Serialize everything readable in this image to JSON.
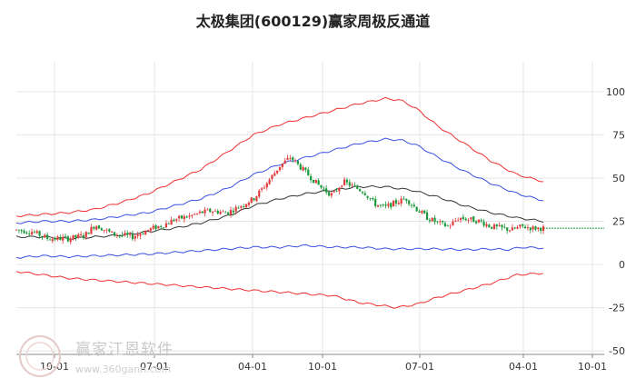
{
  "chart_data": {
    "type": "candlestick-with-bands",
    "title": "太极集团(600129)赢家周极反通道",
    "y_ticks": [
      100,
      75,
      50,
      25,
      0,
      -25,
      -50
    ],
    "ylim": [
      -52,
      112
    ],
    "x_ticks": [
      "10-01",
      "07-01",
      "04-01",
      "10-01",
      "07-01",
      "04-01",
      "10-01"
    ],
    "grid": true,
    "colors": {
      "up": "#e23b3b",
      "down": "#1b9a3b",
      "outer_band": "#f03030",
      "inner_band": "#3a4fe0",
      "middle": "#333333",
      "last_level": "#1b9a3b"
    },
    "series": [
      {
        "role": "outer_upper",
        "points": [
          [
            0,
            28
          ],
          [
            0.05,
            29
          ],
          [
            0.1,
            30
          ],
          [
            0.15,
            32
          ],
          [
            0.2,
            36
          ],
          [
            0.25,
            41
          ],
          [
            0.3,
            48
          ],
          [
            0.35,
            55
          ],
          [
            0.4,
            65
          ],
          [
            0.45,
            75
          ],
          [
            0.5,
            81
          ],
          [
            0.55,
            85
          ],
          [
            0.6,
            89
          ],
          [
            0.65,
            93
          ],
          [
            0.7,
            96
          ],
          [
            0.73,
            95
          ],
          [
            0.76,
            90
          ],
          [
            0.8,
            80
          ],
          [
            0.85,
            70
          ],
          [
            0.9,
            60
          ],
          [
            0.95,
            52
          ],
          [
            1,
            48
          ]
        ]
      },
      {
        "role": "inner_upper",
        "points": [
          [
            0,
            24
          ],
          [
            0.05,
            25
          ],
          [
            0.1,
            25
          ],
          [
            0.15,
            26
          ],
          [
            0.2,
            28
          ],
          [
            0.25,
            30
          ],
          [
            0.3,
            34
          ],
          [
            0.35,
            38
          ],
          [
            0.4,
            44
          ],
          [
            0.45,
            52
          ],
          [
            0.5,
            58
          ],
          [
            0.55,
            62
          ],
          [
            0.6,
            66
          ],
          [
            0.65,
            70
          ],
          [
            0.7,
            72.5
          ],
          [
            0.73,
            72
          ],
          [
            0.76,
            69
          ],
          [
            0.8,
            62
          ],
          [
            0.85,
            54
          ],
          [
            0.9,
            47
          ],
          [
            0.95,
            41
          ],
          [
            1,
            37
          ]
        ]
      },
      {
        "role": "middle",
        "points": [
          [
            0,
            16
          ],
          [
            0.05,
            16
          ],
          [
            0.1,
            15
          ],
          [
            0.15,
            16
          ],
          [
            0.2,
            17
          ],
          [
            0.25,
            19
          ],
          [
            0.3,
            21
          ],
          [
            0.35,
            24
          ],
          [
            0.4,
            28
          ],
          [
            0.45,
            34
          ],
          [
            0.5,
            38
          ],
          [
            0.55,
            41
          ],
          [
            0.6,
            43
          ],
          [
            0.65,
            45
          ],
          [
            0.7,
            45
          ],
          [
            0.75,
            43
          ],
          [
            0.8,
            39
          ],
          [
            0.85,
            34
          ],
          [
            0.9,
            30
          ],
          [
            0.95,
            27
          ],
          [
            1,
            25
          ]
        ]
      },
      {
        "role": "inner_lower",
        "points": [
          [
            0,
            4
          ],
          [
            0.05,
            5
          ],
          [
            0.1,
            4.5
          ],
          [
            0.15,
            5
          ],
          [
            0.2,
            5.5
          ],
          [
            0.25,
            6
          ],
          [
            0.3,
            7
          ],
          [
            0.35,
            8
          ],
          [
            0.4,
            9
          ],
          [
            0.45,
            10
          ],
          [
            0.5,
            10
          ],
          [
            0.55,
            11
          ],
          [
            0.6,
            10
          ],
          [
            0.65,
            10
          ],
          [
            0.7,
            9
          ],
          [
            0.75,
            9
          ],
          [
            0.8,
            9
          ],
          [
            0.85,
            8.5
          ],
          [
            0.9,
            9
          ],
          [
            0.93,
            8.5
          ],
          [
            0.96,
            10
          ],
          [
            1,
            9.5
          ]
        ]
      },
      {
        "role": "outer_lower",
        "points": [
          [
            0,
            -4
          ],
          [
            0.05,
            -6
          ],
          [
            0.1,
            -8
          ],
          [
            0.15,
            -9
          ],
          [
            0.2,
            -10
          ],
          [
            0.25,
            -11
          ],
          [
            0.3,
            -12
          ],
          [
            0.35,
            -13
          ],
          [
            0.4,
            -14
          ],
          [
            0.45,
            -15
          ],
          [
            0.5,
            -16
          ],
          [
            0.55,
            -17
          ],
          [
            0.6,
            -18
          ],
          [
            0.65,
            -22
          ],
          [
            0.7,
            -24
          ],
          [
            0.72,
            -25
          ],
          [
            0.76,
            -23
          ],
          [
            0.8,
            -19
          ],
          [
            0.85,
            -15
          ],
          [
            0.9,
            -11
          ],
          [
            0.95,
            -6
          ],
          [
            1,
            -5
          ]
        ]
      }
    ],
    "price_path": [
      [
        0,
        20
      ],
      [
        0.03,
        19
      ],
      [
        0.06,
        15
      ],
      [
        0.1,
        15
      ],
      [
        0.13,
        17
      ],
      [
        0.15,
        23
      ],
      [
        0.18,
        18
      ],
      [
        0.22,
        16
      ],
      [
        0.25,
        20
      ],
      [
        0.28,
        23
      ],
      [
        0.3,
        26
      ],
      [
        0.33,
        28
      ],
      [
        0.35,
        30
      ],
      [
        0.37,
        31
      ],
      [
        0.4,
        30
      ],
      [
        0.42,
        33
      ],
      [
        0.45,
        38
      ],
      [
        0.47,
        45
      ],
      [
        0.5,
        57
      ],
      [
        0.52,
        62
      ],
      [
        0.54,
        56
      ],
      [
        0.56,
        50
      ],
      [
        0.58,
        44
      ],
      [
        0.6,
        40
      ],
      [
        0.62,
        48
      ],
      [
        0.64,
        45
      ],
      [
        0.66,
        42
      ],
      [
        0.68,
        35
      ],
      [
        0.7,
        33
      ],
      [
        0.72,
        36
      ],
      [
        0.74,
        38
      ],
      [
        0.76,
        32
      ],
      [
        0.78,
        27
      ],
      [
        0.8,
        24
      ],
      [
        0.82,
        22
      ],
      [
        0.84,
        27
      ],
      [
        0.86,
        26
      ],
      [
        0.88,
        25
      ],
      [
        0.9,
        22
      ],
      [
        0.92,
        21
      ],
      [
        0.94,
        20
      ],
      [
        0.96,
        22
      ],
      [
        0.98,
        21
      ],
      [
        1,
        21
      ]
    ],
    "last_level": 21
  }
}
